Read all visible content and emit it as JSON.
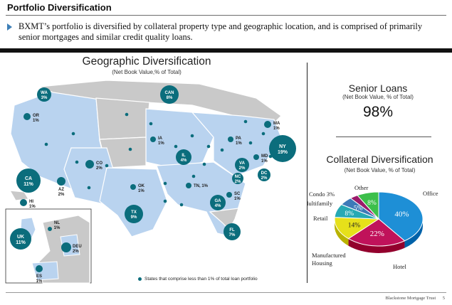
{
  "header": {
    "title": "Portfolio Diversification",
    "bullet": "BXMT’s portfolio is diversified by collateral property type and geographic location, and is comprised of primarily senior mortgages and similar credit quality loans."
  },
  "geographic": {
    "title": "Geographic Diversification",
    "subtitle": "(Net Book Value,% of Total)",
    "legend": "States that comprise less than 1% of total loan portfolio",
    "markers": [
      {
        "code": "WA",
        "pct": "3%"
      },
      {
        "code": "CAN",
        "pct": "8%"
      },
      {
        "code": "OR",
        "pct": "1%"
      },
      {
        "code": "MA",
        "pct": "1%"
      },
      {
        "code": "IA",
        "pct": "1%"
      },
      {
        "code": "PA",
        "pct": "1%"
      },
      {
        "code": "NY",
        "pct": "19%"
      },
      {
        "code": "CO",
        "pct": "2%"
      },
      {
        "code": "IL",
        "pct": "4%"
      },
      {
        "code": "MD",
        "pct": "1%"
      },
      {
        "code": "VA",
        "pct": "2%"
      },
      {
        "code": "DC",
        "pct": "2%"
      },
      {
        "code": "CA",
        "pct": "11%"
      },
      {
        "code": "AZ",
        "pct": "2%"
      },
      {
        "code": "OK",
        "pct": "1%"
      },
      {
        "code": "TN",
        "pct": "1%"
      },
      {
        "code": "NC",
        "pct": "2%"
      },
      {
        "code": "HI",
        "pct": "1%"
      },
      {
        "code": "SC",
        "pct": "1%"
      },
      {
        "code": "GA",
        "pct": "4%"
      },
      {
        "code": "TX",
        "pct": "9%"
      },
      {
        "code": "FL",
        "pct": "7%"
      },
      {
        "code": "UK",
        "pct": "11%"
      },
      {
        "code": "NL",
        "pct": "1%"
      },
      {
        "code": "DEU",
        "pct": "2%"
      },
      {
        "code": "ES",
        "pct": "1%"
      }
    ],
    "colors": {
      "marker": "#0b6d7c",
      "state": "#b9d3ef",
      "grey": "#c9c9c9",
      "border": "#ffffff"
    }
  },
  "senior": {
    "title": "Senior Loans",
    "subtitle": "(Net Book Value, % of Total)",
    "value": "98%"
  },
  "collateral": {
    "title": "Collateral Diversification",
    "subtitle": "(Net Book Value, % of Total)",
    "chart_data": {
      "type": "pie",
      "title": "Collateral Diversification",
      "subtitle": "(Net Book Value, % of Total)",
      "slices": [
        {
          "name": "Office",
          "value": 40,
          "label": "40%",
          "color": "#1e8fd6"
        },
        {
          "name": "Hotel",
          "value": 22,
          "label": "22%",
          "color": "#c0125a"
        },
        {
          "name": "Manufactured Housing",
          "value": 14,
          "label": "14%",
          "color": "#e6e01a"
        },
        {
          "name": "Retail",
          "value": 8,
          "label": "8%",
          "color": "#27a9b4"
        },
        {
          "name": "Multifamily",
          "value": 5,
          "label": "5%",
          "color": "#3d7ab8"
        },
        {
          "name": "Condo",
          "value": 3,
          "label": "3%",
          "color": "#9a1b6a"
        },
        {
          "name": "Other",
          "value": 8,
          "label": "8%",
          "color": "#3cbf4b"
        }
      ],
      "outside_labels": {
        "office": "Office",
        "hotel": "Hotel",
        "manufactured": "Manufactured",
        "housing": "Housing",
        "retail": "Retail",
        "multifamily": "Multifamily",
        "condo": "Condo 3%",
        "other": "Other"
      }
    }
  },
  "footer": {
    "company": "Blackstone Mortgage Trust",
    "page": "5"
  }
}
